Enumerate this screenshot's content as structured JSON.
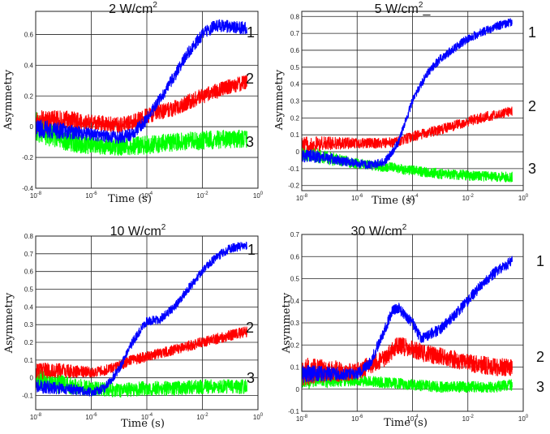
{
  "chart_data": [
    {
      "type": "line",
      "title": "2 W/cm",
      "title_sup": "2",
      "xlabel": "Time (s)",
      "ylabel": "Asymmetry",
      "xscale": "log",
      "xlim": [
        1e-08,
        1
      ],
      "ylim": [
        -0.4,
        0.75
      ],
      "xticks": [
        1e-08,
        1e-06,
        0.0001,
        0.01,
        1
      ],
      "yticks": [
        -0.4,
        -0.2,
        0,
        0.2,
        0.4,
        0.6
      ],
      "ytick_labels": [
        "-0.4",
        "-0.2",
        "0",
        "0.2",
        "0.4",
        "0.6"
      ],
      "grid": true,
      "noise": [
        0.06,
        0.05,
        0.04
      ],
      "series": [
        {
          "name": "1",
          "color": "#00ff00",
          "x": [
            1e-08,
            1e-07,
            1e-06,
            1e-05,
            0.0001,
            0.001,
            0.01,
            0.1,
            0.4
          ],
          "y": [
            0.0,
            -0.08,
            -0.12,
            -0.13,
            -0.12,
            -0.1,
            -0.09,
            -0.08,
            -0.08
          ]
        },
        {
          "name": "2",
          "color": "#ff0000",
          "x": [
            1e-08,
            1e-07,
            1e-06,
            1e-05,
            3e-05,
            0.0001,
            0.001,
            0.01,
            0.1,
            0.4
          ],
          "y": [
            0.03,
            0.04,
            0.03,
            0.01,
            0.03,
            0.07,
            0.12,
            0.2,
            0.26,
            0.29
          ]
        },
        {
          "name": "3",
          "color": "#0000ff",
          "x": [
            1e-08,
            1e-07,
            1e-06,
            1e-05,
            3e-05,
            0.0001,
            0.0003,
            0.001,
            0.003,
            0.01,
            0.03,
            0.1,
            0.4
          ],
          "y": [
            -0.01,
            -0.03,
            -0.05,
            -0.07,
            -0.05,
            0.05,
            0.18,
            0.33,
            0.48,
            0.6,
            0.66,
            0.65,
            0.64
          ]
        }
      ]
    },
    {
      "type": "line",
      "title": "5 W/cm",
      "title_sup": "2",
      "title_suffix": "_",
      "xlabel": "Time (s)",
      "ylabel": "Asymmetry",
      "xscale": "log",
      "xlim": [
        1e-08,
        1
      ],
      "ylim": [
        -0.23,
        0.83
      ],
      "xticks": [
        1e-08,
        1e-06,
        0.0001,
        0.01,
        1
      ],
      "yticks": [
        -0.2,
        -0.1,
        0,
        0.1,
        0.2,
        0.3,
        0.4,
        0.5,
        0.6,
        0.7,
        0.8
      ],
      "ytick_labels": [
        "-0.2",
        "-0.1",
        "0",
        "0.1",
        "0.2",
        "0.3",
        "0.4",
        "0.5",
        "0.6",
        "0.7",
        "0.8"
      ],
      "grid": true,
      "noise": [
        0.03,
        0.03,
        0.025
      ],
      "series": [
        {
          "name": "1",
          "color": "#00ff00",
          "x": [
            1e-08,
            1e-07,
            1e-06,
            1e-05,
            0.0001,
            0.001,
            0.01,
            0.1,
            0.4
          ],
          "y": [
            0.0,
            -0.04,
            -0.07,
            -0.09,
            -0.11,
            -0.13,
            -0.14,
            -0.15,
            -0.15
          ]
        },
        {
          "name": "2",
          "color": "#ff0000",
          "x": [
            1e-08,
            1e-07,
            1e-06,
            1e-05,
            3e-05,
            0.0001,
            0.001,
            0.01,
            0.1,
            0.4
          ],
          "y": [
            0.04,
            0.05,
            0.05,
            0.05,
            0.06,
            0.09,
            0.13,
            0.18,
            0.22,
            0.24
          ]
        },
        {
          "name": "3",
          "color": "#0000ff",
          "x": [
            1e-08,
            1e-07,
            1e-06,
            3e-06,
            1e-05,
            3e-05,
            0.0001,
            0.0003,
            0.001,
            0.01,
            0.1,
            0.4
          ],
          "y": [
            -0.02,
            -0.04,
            -0.07,
            -0.08,
            -0.06,
            0.05,
            0.3,
            0.45,
            0.55,
            0.67,
            0.74,
            0.77
          ]
        }
      ]
    },
    {
      "type": "line",
      "title": "10 W/cm",
      "title_sup": "2",
      "xlabel": "Time (s)",
      "ylabel": "Asymmetry",
      "xscale": "log",
      "xlim": [
        1e-08,
        1
      ],
      "ylim": [
        -0.18,
        0.8
      ],
      "xticks": [
        1e-08,
        1e-06,
        0.0001,
        0.01,
        1
      ],
      "yticks": [
        -0.1,
        0,
        0.1,
        0.2,
        0.3,
        0.4,
        0.5,
        0.6,
        0.7,
        0.8
      ],
      "ytick_labels": [
        "-0.1",
        "0",
        "0.1",
        "0.2",
        "0.3",
        "0.4",
        "0.5",
        "0.6",
        "0.7",
        "0.8"
      ],
      "grid": true,
      "noise": [
        0.04,
        0.03,
        0.025
      ],
      "series": [
        {
          "name": "1",
          "color": "#00ff00",
          "x": [
            1e-08,
            1e-07,
            1e-06,
            1e-05,
            0.0001,
            0.001,
            0.01,
            0.1,
            0.4
          ],
          "y": [
            0.0,
            -0.04,
            -0.06,
            -0.07,
            -0.06,
            -0.06,
            -0.05,
            -0.05,
            -0.05
          ]
        },
        {
          "name": "2",
          "color": "#ff0000",
          "x": [
            1e-08,
            1e-07,
            1e-06,
            3e-06,
            1e-05,
            3e-05,
            0.0001,
            0.001,
            0.01,
            0.1,
            0.4
          ],
          "y": [
            0.04,
            0.04,
            0.03,
            0.04,
            0.07,
            0.1,
            0.12,
            0.16,
            0.2,
            0.24,
            0.26
          ]
        },
        {
          "name": "3",
          "color": "#0000ff",
          "x": [
            1e-08,
            1e-07,
            1e-06,
            3e-06,
            1e-05,
            3e-05,
            0.0001,
            0.0003,
            0.001,
            0.003,
            0.01,
            0.03,
            0.1,
            0.4
          ],
          "y": [
            -0.05,
            -0.06,
            -0.08,
            -0.06,
            0.05,
            0.2,
            0.32,
            0.33,
            0.4,
            0.5,
            0.6,
            0.68,
            0.73,
            0.75
          ]
        }
      ]
    },
    {
      "type": "line",
      "title": "30 W/cm",
      "title_sup": "2",
      "xlabel": "Time (s)",
      "ylabel": "Asymmetry",
      "xscale": "log",
      "xlim": [
        1e-08,
        1
      ],
      "ylim": [
        -0.1,
        0.7
      ],
      "xticks": [
        1e-08,
        1e-06,
        0.0001,
        0.01,
        1
      ],
      "yticks": [
        -0.1,
        0,
        0.1,
        0.2,
        0.3,
        0.4,
        0.5,
        0.6,
        0.7
      ],
      "ytick_labels": [
        "-0.1",
        "0",
        "0.1",
        "0.2",
        "0.3",
        "0.4",
        "0.5",
        "0.6",
        "0.7"
      ],
      "grid": true,
      "noise": [
        0.025,
        0.04,
        0.025
      ],
      "series": [
        {
          "name": "1",
          "color": "#00ff00",
          "x": [
            1e-08,
            1e-07,
            1e-06,
            1e-05,
            0.0001,
            0.001,
            0.01,
            0.1,
            0.4
          ],
          "y": [
            0.04,
            0.04,
            0.04,
            0.03,
            0.02,
            0.01,
            0.01,
            0.01,
            0.02
          ]
        },
        {
          "name": "2",
          "color": "#ff0000",
          "x": [
            1e-08,
            1e-07,
            1e-06,
            1e-05,
            3e-05,
            0.0001,
            0.0003,
            0.001,
            0.01,
            0.1,
            0.4
          ],
          "y": [
            0.08,
            0.08,
            0.08,
            0.14,
            0.2,
            0.18,
            0.16,
            0.15,
            0.12,
            0.1,
            0.1
          ]
        },
        {
          "name": "3",
          "color": "#0000ff",
          "x": [
            1e-08,
            1e-07,
            1e-06,
            3e-06,
            1e-05,
            2e-05,
            3e-05,
            0.0001,
            0.0002,
            0.001,
            0.003,
            0.01,
            0.03,
            0.1,
            0.4
          ],
          "y": [
            0.07,
            0.07,
            0.07,
            0.12,
            0.27,
            0.36,
            0.37,
            0.3,
            0.23,
            0.27,
            0.33,
            0.4,
            0.47,
            0.53,
            0.58
          ]
        }
      ]
    }
  ]
}
